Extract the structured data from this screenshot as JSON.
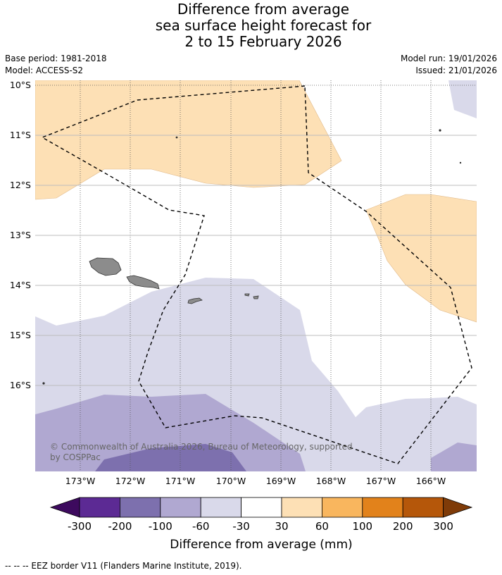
{
  "title": {
    "line1": "Difference from average",
    "line2": "sea surface height forecast for",
    "line3": "2 to 15 February 2026"
  },
  "meta": {
    "base_period": "Base period: 1981-2018",
    "model": "Model: ACCESS-S2",
    "model_run": "Model run: 19/01/2026",
    "issued": "Issued: 21/01/2026"
  },
  "map": {
    "lat_labels": [
      "10°S",
      "11°S",
      "12°S",
      "13°S",
      "14°S",
      "15°S",
      "16°S"
    ],
    "lon_labels": [
      "173°W",
      "172°W",
      "171°W",
      "170°W",
      "169°W",
      "168°W",
      "167°W",
      "166°W"
    ],
    "copyright_line1": "© Commonwealth of Australia 2026, Bureau of Meteorology, supported",
    "copyright_line2": "by COSPPac",
    "colors": {
      "anomaly_30_60": "#fde0b5",
      "anomaly_neg30_neg60": "#d9d9ea",
      "anomaly_neg60_neg100": "#b0a8d1",
      "anomaly_neg100_neg200": "#7d70ae",
      "land": "#8c8c8c"
    }
  },
  "colorbar": {
    "tick_labels": [
      "-300",
      "-200",
      "-100",
      "-60",
      "-30",
      "30",
      "60",
      "100",
      "200",
      "300"
    ],
    "colors": [
      "#3d0a5e",
      "#5c2a94",
      "#7d70ae",
      "#b0a8d1",
      "#d9d9ea",
      "#ffffff",
      "#fde0b5",
      "#f9b65e",
      "#e2821b",
      "#b5570a",
      "#7f3b08"
    ],
    "label": "Difference from average (mm)"
  },
  "footer": {
    "legend_text": "-- -- -- EEZ border V11 (Flanders Marine Institute, 2019)."
  }
}
